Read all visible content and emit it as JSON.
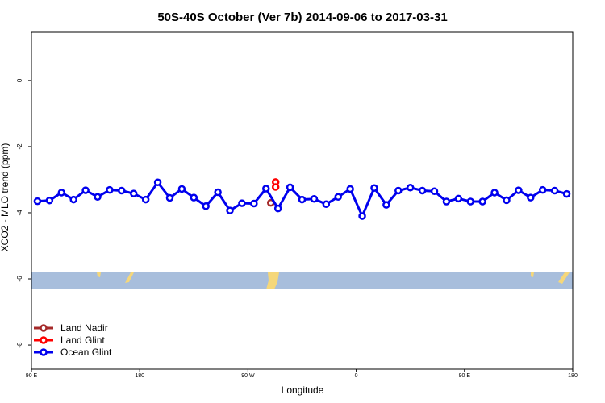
{
  "chart_data": {
    "type": "line",
    "title": "50S-40S October (Ver 7b)   2014-09-06 to 2017-03-31",
    "x_label": "Longitude",
    "y_label": "XCO2 - MLO trend (ppm)",
    "xlim": [
      90,
      540
    ],
    "ylim": [
      -8.73,
      1.46
    ],
    "xticks": [
      {
        "value": 90,
        "label": "90 E"
      },
      180,
      {
        "value": 270,
        "label": "90 W"
      },
      {
        "value": 360,
        "label": "0"
      },
      {
        "value": 450,
        "label": "90 E"
      },
      {
        "value": 540,
        "label": "180"
      }
    ],
    "yticks": [
      -8,
      -6,
      -4,
      -2,
      0
    ],
    "legend": "bottom-left",
    "series": [
      {
        "name": "Land Nadir",
        "color": "#a52a2a",
        "x": [
          289
        ],
        "values": [
          -3.7
        ]
      },
      {
        "name": "Land Glint",
        "color": "#ff0000",
        "x": [
          293,
          293
        ],
        "values": [
          -3.07,
          -3.22
        ]
      },
      {
        "name": "Ocean Glint",
        "color": "#0000ee",
        "x": [
          95,
          105,
          115,
          125,
          135,
          145,
          155,
          165,
          175,
          185,
          195,
          205,
          215,
          225,
          235,
          245,
          255,
          265,
          275,
          285,
          295,
          305,
          315,
          325,
          335,
          345,
          355,
          365,
          375,
          385,
          395,
          405,
          415,
          425,
          435,
          445,
          455,
          465,
          475,
          485,
          495,
          505,
          515,
          525,
          535
        ],
        "values": [
          -3.65,
          -3.63,
          -3.39,
          -3.6,
          -3.32,
          -3.52,
          -3.31,
          -3.33,
          -3.42,
          -3.6,
          -3.08,
          -3.55,
          -3.28,
          -3.54,
          -3.8,
          -3.38,
          -3.93,
          -3.71,
          -3.72,
          -3.27,
          -3.87,
          -3.23,
          -3.6,
          -3.58,
          -3.74,
          -3.52,
          -3.28,
          -4.1,
          -3.25,
          -3.76,
          -3.33,
          -3.24,
          -3.33,
          -3.35,
          -3.66,
          -3.57,
          -3.66,
          -3.66,
          -3.39,
          -3.62,
          -3.32,
          -3.54,
          -3.31,
          -3.33,
          -3.43
        ]
      }
    ]
  }
}
